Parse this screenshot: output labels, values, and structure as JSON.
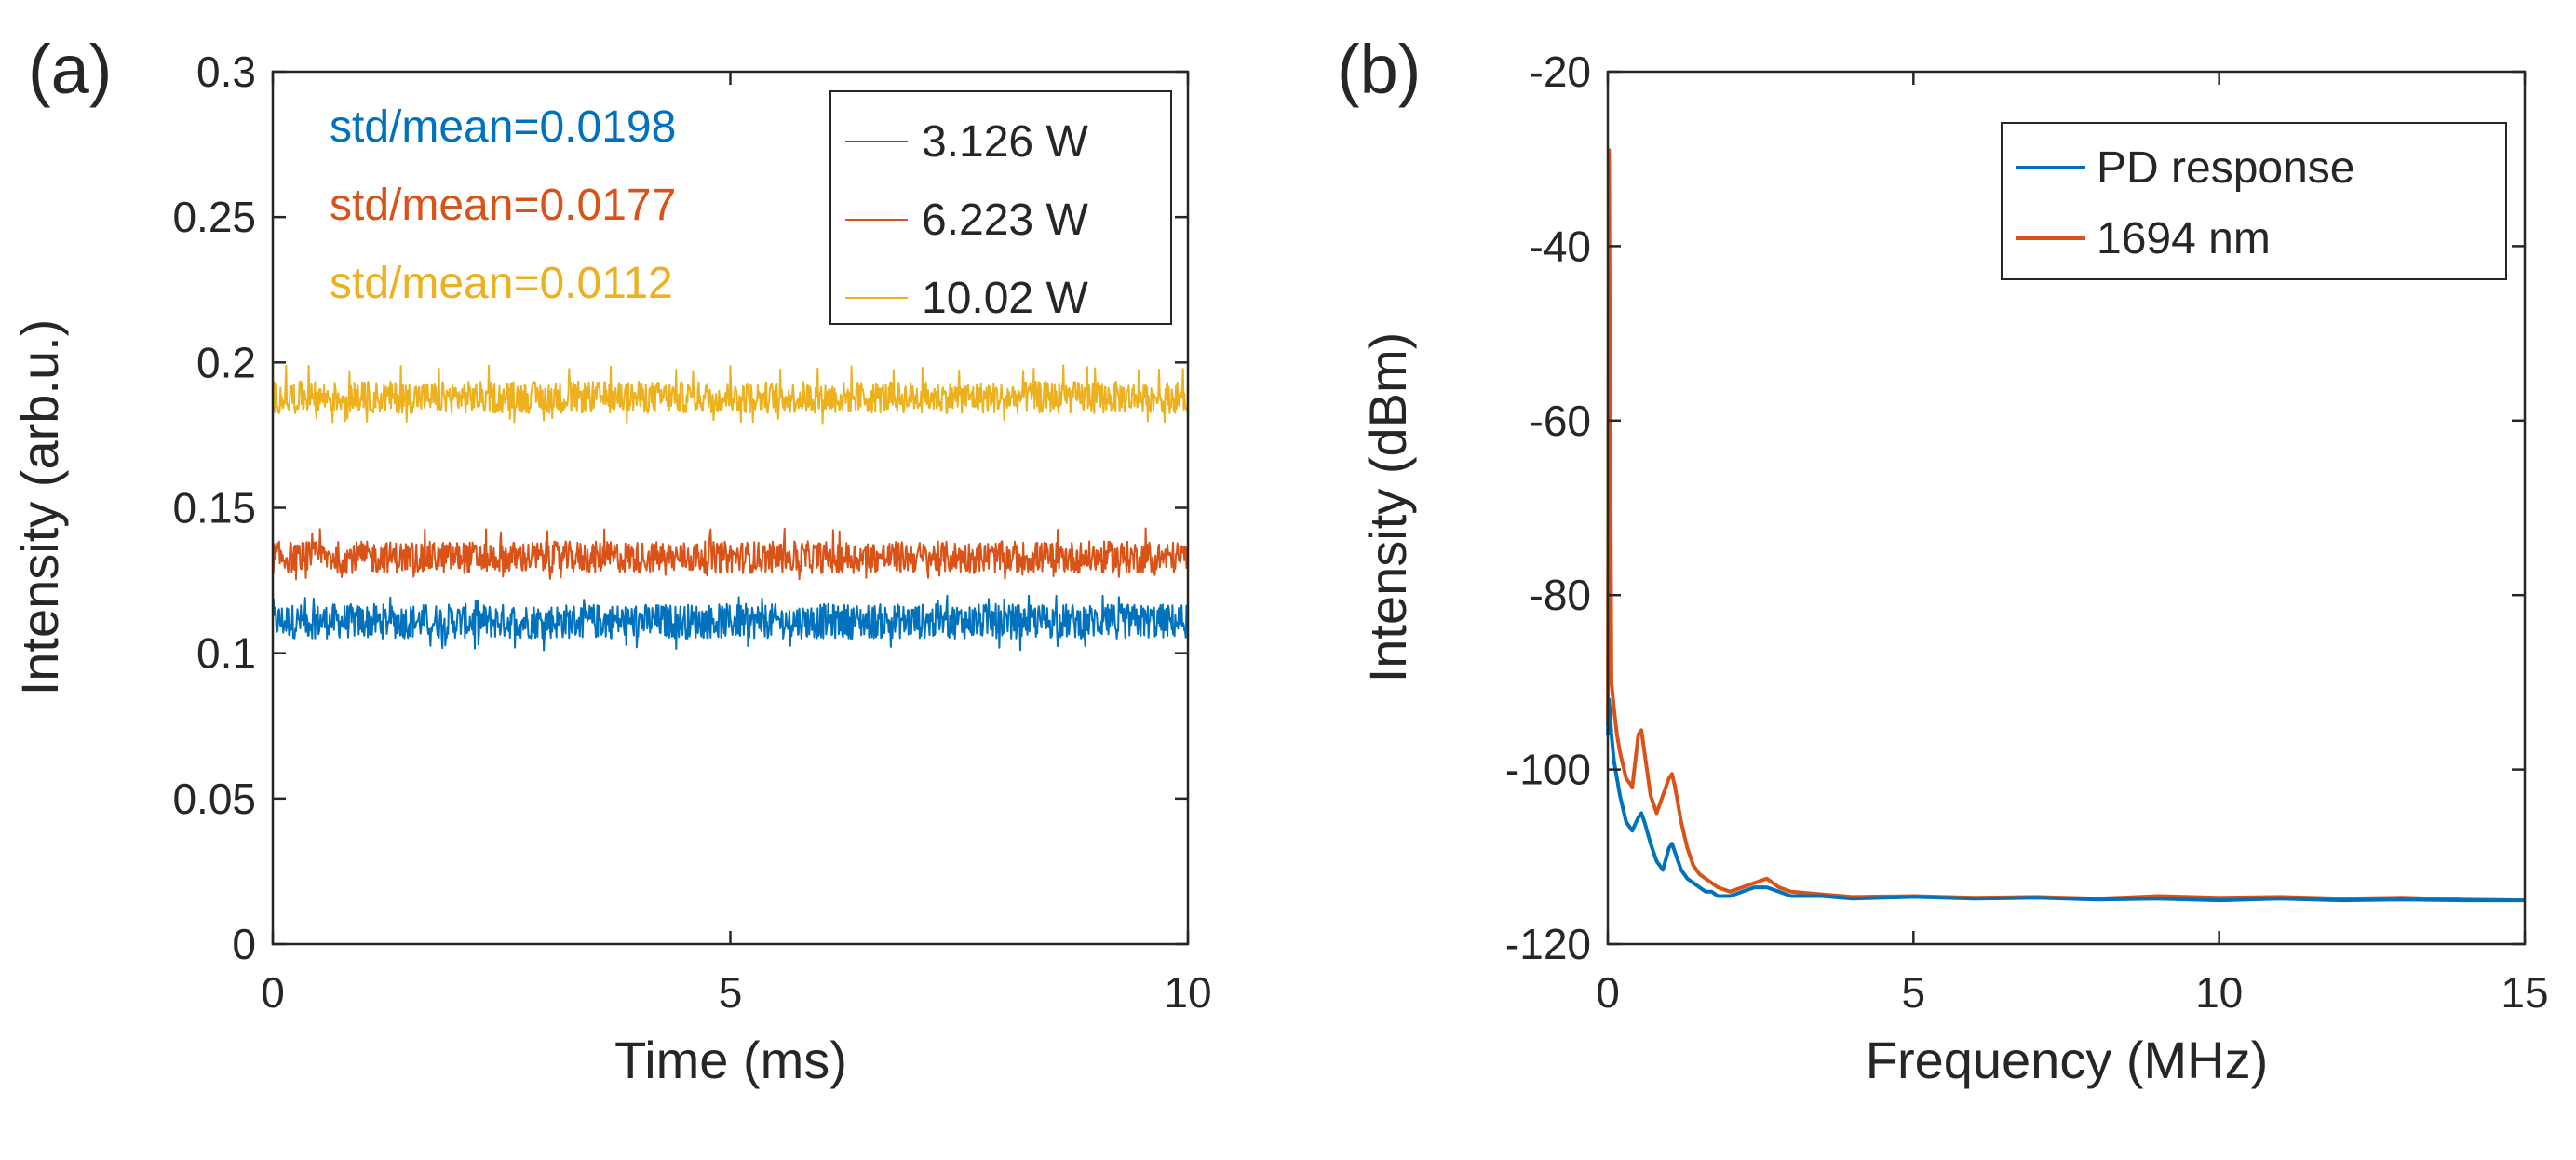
{
  "colors": {
    "blue": "#0072BD",
    "orange": "#D95319",
    "yellow": "#EDB120",
    "axis": "#262626",
    "background": "#ffffff"
  },
  "chart_data": [
    {
      "panel": "(a)",
      "type": "line",
      "xlabel": "Time (ms)",
      "ylabel": "Intensity (arb.u.)",
      "xlim": [
        0,
        10
      ],
      "ylim": [
        0,
        0.3
      ],
      "xticks": [
        0,
        5,
        10
      ],
      "xtick_labels": [
        "0",
        "5",
        "10"
      ],
      "yticks": [
        0,
        0.05,
        0.1,
        0.15,
        0.2,
        0.25,
        0.3
      ],
      "ytick_labels": [
        "0",
        "0.05",
        "0.1",
        "0.15",
        "0.2",
        "0.25",
        "0.3"
      ],
      "grid": false,
      "legend_position": "top-right",
      "annotation_position": "top-left",
      "series": [
        {
          "name": "3.126 W",
          "color": "#0072BD",
          "mean": 0.111,
          "band_halfwidth": 0.006,
          "spike_max": 0.12,
          "spike_min": 0.101,
          "annotation": "std/mean=0.0198"
        },
        {
          "name": "6.223 W",
          "color": "#D95319",
          "mean": 0.133,
          "band_halfwidth": 0.0055,
          "spike_max": 0.143,
          "spike_min": 0.125,
          "annotation": "std/mean=0.0177"
        },
        {
          "name": "10.02 W",
          "color": "#EDB120",
          "mean": 0.188,
          "band_halfwidth": 0.0055,
          "spike_max": 0.199,
          "spike_min": 0.179,
          "annotation": "std/mean=0.0112"
        }
      ]
    },
    {
      "panel": "(b)",
      "type": "line",
      "xlabel": "Frequency (MHz)",
      "ylabel": "Intensity (dBm)",
      "xlim": [
        0,
        15
      ],
      "ylim": [
        -120,
        -20
      ],
      "xticks": [
        0,
        5,
        10,
        15
      ],
      "xtick_labels": [
        "0",
        "5",
        "10",
        "15"
      ],
      "yticks": [
        -120,
        -100,
        -80,
        -60,
        -40,
        -20
      ],
      "ytick_labels": [
        "-120",
        "-100",
        "-80",
        "-60",
        "-40",
        "-20"
      ],
      "grid": false,
      "legend_position": "top-right",
      "series": [
        {
          "name": "PD response",
          "color": "#0072BD",
          "x": [
            0,
            0.02,
            0.06,
            0.1,
            0.15,
            0.2,
            0.3,
            0.4,
            0.5,
            0.55,
            0.6,
            0.7,
            0.8,
            0.9,
            1.0,
            1.05,
            1.1,
            1.2,
            1.3,
            1.4,
            1.5,
            1.6,
            1.7,
            1.8,
            1.9,
            2.0,
            2.2,
            2.4,
            2.6,
            2.8,
            3.0,
            3.5,
            4.0,
            5.0,
            6.0,
            7.0,
            8.0,
            9.0,
            10.0,
            11.0,
            12.0,
            13.0,
            14.0,
            15.0
          ],
          "y": [
            -96,
            -92,
            -96,
            -99,
            -101,
            -103,
            -106,
            -107,
            -105.5,
            -105,
            -106,
            -108.5,
            -110.5,
            -111.5,
            -109,
            -108.5,
            -109.5,
            -111.5,
            -112.5,
            -113,
            -113.5,
            -114,
            -114,
            -114.5,
            -114.5,
            -114.5,
            -114,
            -113.5,
            -113.5,
            -114,
            -114.5,
            -114.5,
            -114.8,
            -114.6,
            -114.8,
            -114.7,
            -114.9,
            -114.8,
            -115,
            -114.8,
            -115,
            -114.9,
            -115,
            -115
          ]
        },
        {
          "name": "1694 nm",
          "color": "#D95319",
          "x": [
            0,
            0.02,
            0.04,
            0.06,
            0.1,
            0.15,
            0.2,
            0.3,
            0.4,
            0.5,
            0.55,
            0.6,
            0.7,
            0.8,
            0.9,
            1.0,
            1.05,
            1.1,
            1.2,
            1.3,
            1.4,
            1.5,
            1.6,
            1.7,
            1.8,
            2.0,
            2.2,
            2.4,
            2.6,
            2.8,
            3.0,
            3.5,
            4.0,
            5.0,
            6.0,
            7.0,
            8.0,
            9.0,
            10.0,
            11.0,
            12.0,
            13.0,
            14.0,
            15.0
          ],
          "y": [
            -95,
            -29,
            -60,
            -90,
            -93,
            -96,
            -98,
            -101,
            -102,
            -96,
            -95.5,
            -98,
            -103,
            -105,
            -103,
            -101,
            -100.5,
            -102,
            -106,
            -109,
            -111,
            -112,
            -112.5,
            -113,
            -113.5,
            -114,
            -113.5,
            -113,
            -112.5,
            -113.5,
            -114,
            -114.3,
            -114.6,
            -114.5,
            -114.7,
            -114.6,
            -114.8,
            -114.5,
            -114.7,
            -114.6,
            -114.8,
            -114.7,
            -114.9,
            -115
          ]
        }
      ]
    }
  ]
}
